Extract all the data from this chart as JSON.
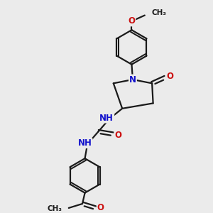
{
  "bg_color": "#ebebeb",
  "bond_color": "#1a1a1a",
  "bond_width": 1.6,
  "atom_colors": {
    "N": "#1010cc",
    "O": "#cc1010",
    "C": "#1a1a1a",
    "H": "#5a8a8a"
  },
  "font_size_atom": 8.5,
  "font_size_small": 7.5,
  "fig_width": 3.0,
  "fig_height": 3.0,
  "dpi": 100,
  "xlim": [
    0,
    10
  ],
  "ylim": [
    0,
    10
  ]
}
